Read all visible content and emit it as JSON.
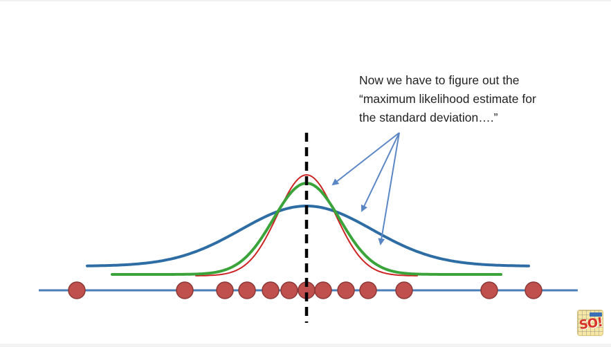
{
  "callout": {
    "text": "Now we have to figure out the\n“maximum likelihood estimate for\nthe standard deviation….”"
  },
  "colors": {
    "axis": "#4a7ebb",
    "points_fill": "#c0504d",
    "points_stroke": "#8c3836",
    "mean_line": "#000000",
    "curve_wide": "#2e6da4",
    "curve_medium": "#3aa33a",
    "curve_narrow": "#cc2222",
    "arrows": "#5b86c4"
  },
  "logo": {
    "text": "SO!",
    "icon": "statquest-logo"
  }
}
